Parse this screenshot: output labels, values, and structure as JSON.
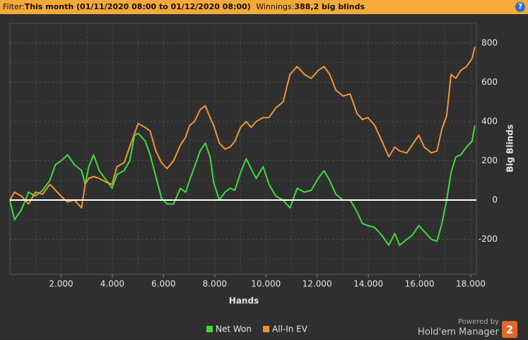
{
  "header": {
    "filter_label": "Filter:",
    "filter_value": "This month (01/11/2020 08:00 to 01/12/2020 08:00)",
    "winnings_label": "Winnings:",
    "winnings_value": "388,2 big blinds",
    "help": "?"
  },
  "branding": {
    "powered_by": "Powered by",
    "product": "Hold'em Manager",
    "logo": "2"
  },
  "chart_data": {
    "type": "line",
    "x_label": "Hands",
    "y_label": "Big Blinds",
    "grid": true,
    "y_axis_side": "right",
    "legend": "bottom",
    "xlim": [
      0,
      18220
    ],
    "ylim": [
      -378,
      900
    ],
    "xticks": [
      {
        "value": 2000,
        "label": "2.000"
      },
      {
        "value": 4000,
        "label": "4.000"
      },
      {
        "value": 6000,
        "label": "6.000"
      },
      {
        "value": 8000,
        "label": "8.000"
      },
      {
        "value": 10000,
        "label": "10.000"
      },
      {
        "value": 12000,
        "label": "12.000"
      },
      {
        "value": 14000,
        "label": "14.000"
      },
      {
        "value": 16000,
        "label": "16.000"
      },
      {
        "value": 18000,
        "label": "18.000"
      }
    ],
    "yticks": [
      -200,
      0,
      200,
      400,
      600,
      800
    ],
    "x": [
      0,
      180,
      450,
      730,
      1000,
      1280,
      1560,
      1780,
      2000,
      2250,
      2520,
      2800,
      2940,
      3080,
      3270,
      3490,
      3770,
      3990,
      4180,
      4460,
      4680,
      4870,
      5010,
      5290,
      5480,
      5700,
      5920,
      6140,
      6390,
      6660,
      6860,
      7020,
      7210,
      7430,
      7630,
      7820,
      7960,
      8180,
      8400,
      8600,
      8790,
      9010,
      9230,
      9420,
      9620,
      9890,
      10120,
      10390,
      10670,
      10940,
      11220,
      11500,
      11770,
      12040,
      12270,
      12490,
      12730,
      13010,
      13290,
      13560,
      13770,
      13980,
      14250,
      14530,
      14800,
      15030,
      15220,
      15500,
      15710,
      15970,
      16180,
      16460,
      16680,
      16870,
      17060,
      17230,
      17420,
      17610,
      17830,
      18050,
      18160
    ],
    "series": [
      {
        "name": "Net Won",
        "color": "#3ddc3d",
        "values": [
          0,
          -100,
          -50,
          40,
          20,
          50,
          100,
          180,
          200,
          230,
          180,
          150,
          80,
          170,
          230,
          150,
          100,
          60,
          130,
          150,
          200,
          330,
          340,
          300,
          230,
          120,
          10,
          -20,
          -20,
          60,
          40,
          100,
          170,
          250,
          290,
          220,
          90,
          0,
          40,
          60,
          50,
          140,
          210,
          160,
          110,
          170,
          80,
          20,
          0,
          -40,
          60,
          40,
          50,
          110,
          150,
          100,
          30,
          0,
          0,
          -60,
          -120,
          -130,
          -140,
          -180,
          -230,
          -170,
          -230,
          -200,
          -180,
          -130,
          -160,
          -200,
          -210,
          -120,
          0,
          140,
          220,
          230,
          270,
          300,
          380
        ]
      },
      {
        "name": "All-In EV",
        "color": "#f39432",
        "values": [
          0,
          40,
          20,
          -20,
          40,
          30,
          80,
          50,
          20,
          -10,
          0,
          -40,
          80,
          110,
          120,
          110,
          90,
          80,
          170,
          190,
          270,
          340,
          390,
          370,
          350,
          250,
          190,
          160,
          200,
          280,
          320,
          380,
          400,
          460,
          480,
          420,
          380,
          290,
          260,
          270,
          300,
          370,
          400,
          370,
          400,
          420,
          420,
          470,
          500,
          640,
          680,
          640,
          620,
          660,
          680,
          640,
          560,
          530,
          540,
          440,
          410,
          420,
          380,
          300,
          220,
          270,
          250,
          240,
          280,
          330,
          270,
          240,
          250,
          360,
          430,
          640,
          620,
          660,
          680,
          720,
          780
        ]
      }
    ]
  }
}
